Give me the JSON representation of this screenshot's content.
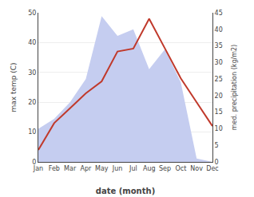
{
  "chart_data": {
    "type": "line",
    "xlabel": "date (month)",
    "ylabel": "max temp (C)",
    "y2label": "med. precipitation (kg/m2)",
    "categories": [
      "Jan",
      "Feb",
      "Mar",
      "Apr",
      "May",
      "Jun",
      "Jul",
      "Aug",
      "Sep",
      "Oct",
      "Nov",
      "Dec"
    ],
    "series": [
      {
        "type": "area",
        "color": "#c5cdf0",
        "axis": "y2",
        "values": [
          10,
          13,
          18,
          25,
          44,
          38,
          40,
          28,
          34,
          24,
          1,
          0
        ]
      },
      {
        "type": "line",
        "color": "#c0392b",
        "values": [
          4,
          13,
          18,
          23,
          27,
          37,
          38,
          48,
          38,
          28,
          20,
          12
        ]
      }
    ],
    "ylim": [
      0,
      50
    ],
    "yticks": [
      0,
      10,
      20,
      30,
      40,
      50
    ],
    "y2lim": [
      0,
      45
    ],
    "y2ticks": [
      0,
      5,
      10,
      15,
      20,
      25,
      30,
      35,
      40,
      45
    ],
    "grid": true
  }
}
